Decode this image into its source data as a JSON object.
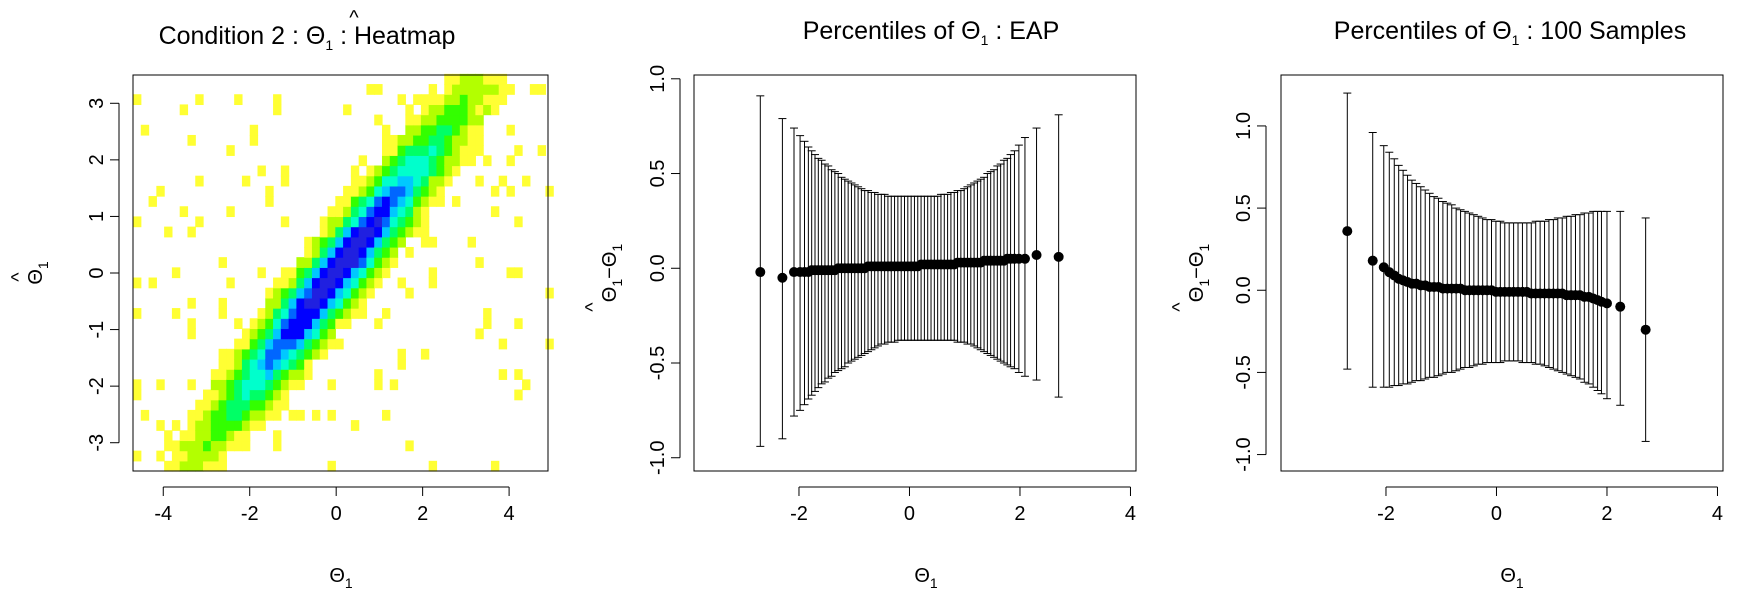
{
  "chart_data": [
    {
      "type": "heatmap",
      "title": "Condition 2 : Θ̂1 : Heatmap",
      "title_parts": {
        "prefix": "Condition 2 : ",
        "sym": "Θ",
        "hat": "^",
        "sub": "1",
        "suffix": " : Heatmap"
      },
      "xlabel": {
        "sym": "Θ",
        "sub": "1"
      },
      "ylabel": {
        "sym": "Θ",
        "hat": "^",
        "sub": "1"
      },
      "xlim": [
        -4.7,
        4.9
      ],
      "ylim": [
        -3.5,
        3.5
      ],
      "xticks": [
        "-4",
        "-2",
        "0",
        "2",
        "4"
      ],
      "yticks": [
        "-3",
        "-2",
        "-1",
        "0",
        "1",
        "2",
        "3"
      ],
      "grid": false,
      "cell_size": 0.18,
      "density": {
        "slope": 1.0,
        "sigma_across": 0.34,
        "extent": 3.9
      },
      "colors": [
        "#2020e0",
        "#0000ff",
        "#0066ff",
        "#00c8ff",
        "#00ffcc",
        "#00ff66",
        "#33ff00",
        "#b3ff00",
        "#ffff33"
      ]
    },
    {
      "type": "scatter",
      "title": "Percentiles of Θ1 : EAP",
      "title_parts": {
        "prefix": "Percentiles of ",
        "sym": "Θ",
        "sub": "1",
        "suffix": " : EAP"
      },
      "xlabel": {
        "sym": "Θ",
        "sub": "1"
      },
      "ylabel": {
        "sym": "Θ",
        "hat": "^",
        "sub": "1",
        "minus": "−",
        "sym2": "Θ",
        "sub2": "1"
      },
      "xlim": [
        -3.9,
        4.1
      ],
      "ylim": [
        -1.07,
        1.02
      ],
      "xticks": [
        "-2",
        "0",
        "2",
        "4"
      ],
      "yticks": [
        "-1.0",
        "-0.5",
        "0.0",
        "0.5",
        "1.0"
      ],
      "grid": false,
      "series": [
        {
          "x": [
            -2.7,
            -2.3,
            -2.09,
            -1.98,
            -1.9,
            -1.83,
            -1.77,
            -1.71,
            -1.65,
            -1.59,
            -1.53,
            -1.47,
            -1.41,
            -1.35,
            -1.29,
            -1.23,
            -1.17,
            -1.11,
            -1.05,
            -0.99,
            -0.93,
            -0.87,
            -0.81,
            -0.75,
            -0.69,
            -0.63,
            -0.57,
            -0.51,
            -0.45,
            -0.39,
            -0.33,
            -0.27,
            -0.21,
            -0.15,
            -0.09,
            -0.03,
            0.03,
            0.09,
            0.15,
            0.21,
            0.27,
            0.33,
            0.39,
            0.45,
            0.51,
            0.57,
            0.63,
            0.69,
            0.75,
            0.81,
            0.87,
            0.93,
            0.99,
            1.05,
            1.11,
            1.17,
            1.23,
            1.29,
            1.35,
            1.41,
            1.47,
            1.53,
            1.59,
            1.65,
            1.71,
            1.77,
            1.83,
            1.9,
            1.98,
            2.09,
            2.3,
            2.7
          ],
          "y": [
            -0.02,
            -0.05,
            -0.02,
            -0.02,
            -0.02,
            -0.02,
            -0.01,
            -0.01,
            -0.01,
            -0.01,
            -0.01,
            -0.01,
            -0.01,
            -0.01,
            0,
            0,
            0,
            0,
            0,
            0,
            0,
            0,
            0,
            0.01,
            0.01,
            0.01,
            0.01,
            0.01,
            0.01,
            0.01,
            0.01,
            0.01,
            0.01,
            0.01,
            0.01,
            0.01,
            0.01,
            0.01,
            0.01,
            0.02,
            0.02,
            0.02,
            0.02,
            0.02,
            0.02,
            0.02,
            0.02,
            0.02,
            0.02,
            0.02,
            0.03,
            0.03,
            0.03,
            0.03,
            0.03,
            0.03,
            0.03,
            0.03,
            0.04,
            0.04,
            0.04,
            0.04,
            0.04,
            0.04,
            0.04,
            0.05,
            0.05,
            0.05,
            0.05,
            0.05,
            0.07,
            0.06
          ],
          "upper": [
            0.91,
            0.79,
            0.74,
            0.7,
            0.67,
            0.64,
            0.62,
            0.6,
            0.58,
            0.57,
            0.55,
            0.54,
            0.52,
            0.51,
            0.5,
            0.48,
            0.47,
            0.46,
            0.45,
            0.44,
            0.43,
            0.42,
            0.41,
            0.41,
            0.4,
            0.4,
            0.39,
            0.39,
            0.39,
            0.38,
            0.38,
            0.38,
            0.38,
            0.38,
            0.38,
            0.38,
            0.38,
            0.38,
            0.38,
            0.38,
            0.38,
            0.38,
            0.38,
            0.38,
            0.38,
            0.39,
            0.39,
            0.39,
            0.4,
            0.4,
            0.41,
            0.41,
            0.42,
            0.43,
            0.44,
            0.45,
            0.46,
            0.47,
            0.48,
            0.5,
            0.51,
            0.52,
            0.54,
            0.55,
            0.57,
            0.58,
            0.6,
            0.62,
            0.65,
            0.69,
            0.74,
            0.81
          ],
          "lower": [
            -0.94,
            -0.9,
            -0.78,
            -0.75,
            -0.72,
            -0.69,
            -0.67,
            -0.65,
            -0.63,
            -0.61,
            -0.6,
            -0.58,
            -0.57,
            -0.55,
            -0.54,
            -0.53,
            -0.52,
            -0.5,
            -0.49,
            -0.48,
            -0.47,
            -0.46,
            -0.45,
            -0.44,
            -0.43,
            -0.42,
            -0.41,
            -0.4,
            -0.4,
            -0.39,
            -0.39,
            -0.39,
            -0.38,
            -0.38,
            -0.38,
            -0.38,
            -0.38,
            -0.38,
            -0.38,
            -0.38,
            -0.38,
            -0.38,
            -0.38,
            -0.38,
            -0.38,
            -0.38,
            -0.38,
            -0.38,
            -0.38,
            -0.38,
            -0.39,
            -0.39,
            -0.39,
            -0.4,
            -0.4,
            -0.41,
            -0.42,
            -0.43,
            -0.44,
            -0.45,
            -0.46,
            -0.47,
            -0.48,
            -0.49,
            -0.5,
            -0.51,
            -0.52,
            -0.53,
            -0.55,
            -0.57,
            -0.59,
            -0.68
          ]
        }
      ]
    },
    {
      "type": "scatter",
      "title": "Percentiles of Θ1 : 100 Samples",
      "title_parts": {
        "prefix": "Percentiles of ",
        "sym": "Θ",
        "sub": "1",
        "suffix": " : 100 Samples"
      },
      "xlabel": {
        "sym": "Θ",
        "sub": "1"
      },
      "ylabel": {
        "sym": "Θ",
        "hat": "^",
        "sub": "1",
        "minus": "−",
        "sym2": "Θ",
        "sub2": "1"
      },
      "xlim": [
        -3.9,
        4.1
      ],
      "ylim": [
        -1.1,
        1.31
      ],
      "xticks": [
        "-2",
        "0",
        "2",
        "4"
      ],
      "yticks": [
        "-1.0",
        "-0.5",
        "0.0",
        "0.5",
        "1.0"
      ],
      "grid": false,
      "series": [
        {
          "x": [
            -2.7,
            -2.24,
            -2.04,
            -1.94,
            -1.85,
            -1.77,
            -1.69,
            -1.61,
            -1.53,
            -1.45,
            -1.37,
            -1.29,
            -1.21,
            -1.13,
            -1.05,
            -0.97,
            -0.89,
            -0.81,
            -0.73,
            -0.65,
            -0.57,
            -0.49,
            -0.41,
            -0.33,
            -0.25,
            -0.17,
            -0.09,
            -0.01,
            0.07,
            0.15,
            0.23,
            0.31,
            0.39,
            0.47,
            0.55,
            0.63,
            0.71,
            0.79,
            0.87,
            0.95,
            1.03,
            1.11,
            1.19,
            1.27,
            1.35,
            1.43,
            1.51,
            1.59,
            1.67,
            1.75,
            1.83,
            1.9,
            2.0,
            2.24,
            2.7
          ],
          "y": [
            0.36,
            0.18,
            0.14,
            0.11,
            0.09,
            0.07,
            0.06,
            0.05,
            0.04,
            0.04,
            0.03,
            0.03,
            0.02,
            0.02,
            0.02,
            0.01,
            0.01,
            0.01,
            0.01,
            0.01,
            0,
            0,
            0,
            0,
            0,
            0,
            0,
            -0.01,
            -0.01,
            -0.01,
            -0.01,
            -0.01,
            -0.01,
            -0.01,
            -0.01,
            -0.02,
            -0.02,
            -0.02,
            -0.02,
            -0.02,
            -0.02,
            -0.02,
            -0.02,
            -0.03,
            -0.03,
            -0.03,
            -0.03,
            -0.04,
            -0.04,
            -0.05,
            -0.06,
            -0.07,
            -0.08,
            -0.1,
            -0.24
          ],
          "upper": [
            1.2,
            0.96,
            0.88,
            0.84,
            0.8,
            0.76,
            0.73,
            0.7,
            0.67,
            0.65,
            0.63,
            0.61,
            0.59,
            0.57,
            0.56,
            0.54,
            0.53,
            0.52,
            0.5,
            0.49,
            0.48,
            0.47,
            0.46,
            0.45,
            0.44,
            0.43,
            0.43,
            0.42,
            0.42,
            0.41,
            0.41,
            0.41,
            0.41,
            0.41,
            0.41,
            0.41,
            0.42,
            0.42,
            0.42,
            0.43,
            0.43,
            0.44,
            0.44,
            0.45,
            0.45,
            0.46,
            0.46,
            0.47,
            0.47,
            0.48,
            0.48,
            0.48,
            0.48,
            0.48,
            0.44
          ],
          "lower": [
            -0.48,
            -0.59,
            -0.59,
            -0.59,
            -0.58,
            -0.58,
            -0.57,
            -0.57,
            -0.56,
            -0.55,
            -0.55,
            -0.54,
            -0.53,
            -0.53,
            -0.52,
            -0.51,
            -0.5,
            -0.5,
            -0.49,
            -0.48,
            -0.47,
            -0.47,
            -0.46,
            -0.45,
            -0.45,
            -0.44,
            -0.44,
            -0.44,
            -0.44,
            -0.43,
            -0.43,
            -0.43,
            -0.43,
            -0.44,
            -0.44,
            -0.44,
            -0.45,
            -0.45,
            -0.46,
            -0.47,
            -0.48,
            -0.49,
            -0.5,
            -0.51,
            -0.52,
            -0.53,
            -0.54,
            -0.56,
            -0.57,
            -0.59,
            -0.61,
            -0.63,
            -0.66,
            -0.7,
            -0.92
          ]
        }
      ]
    }
  ]
}
